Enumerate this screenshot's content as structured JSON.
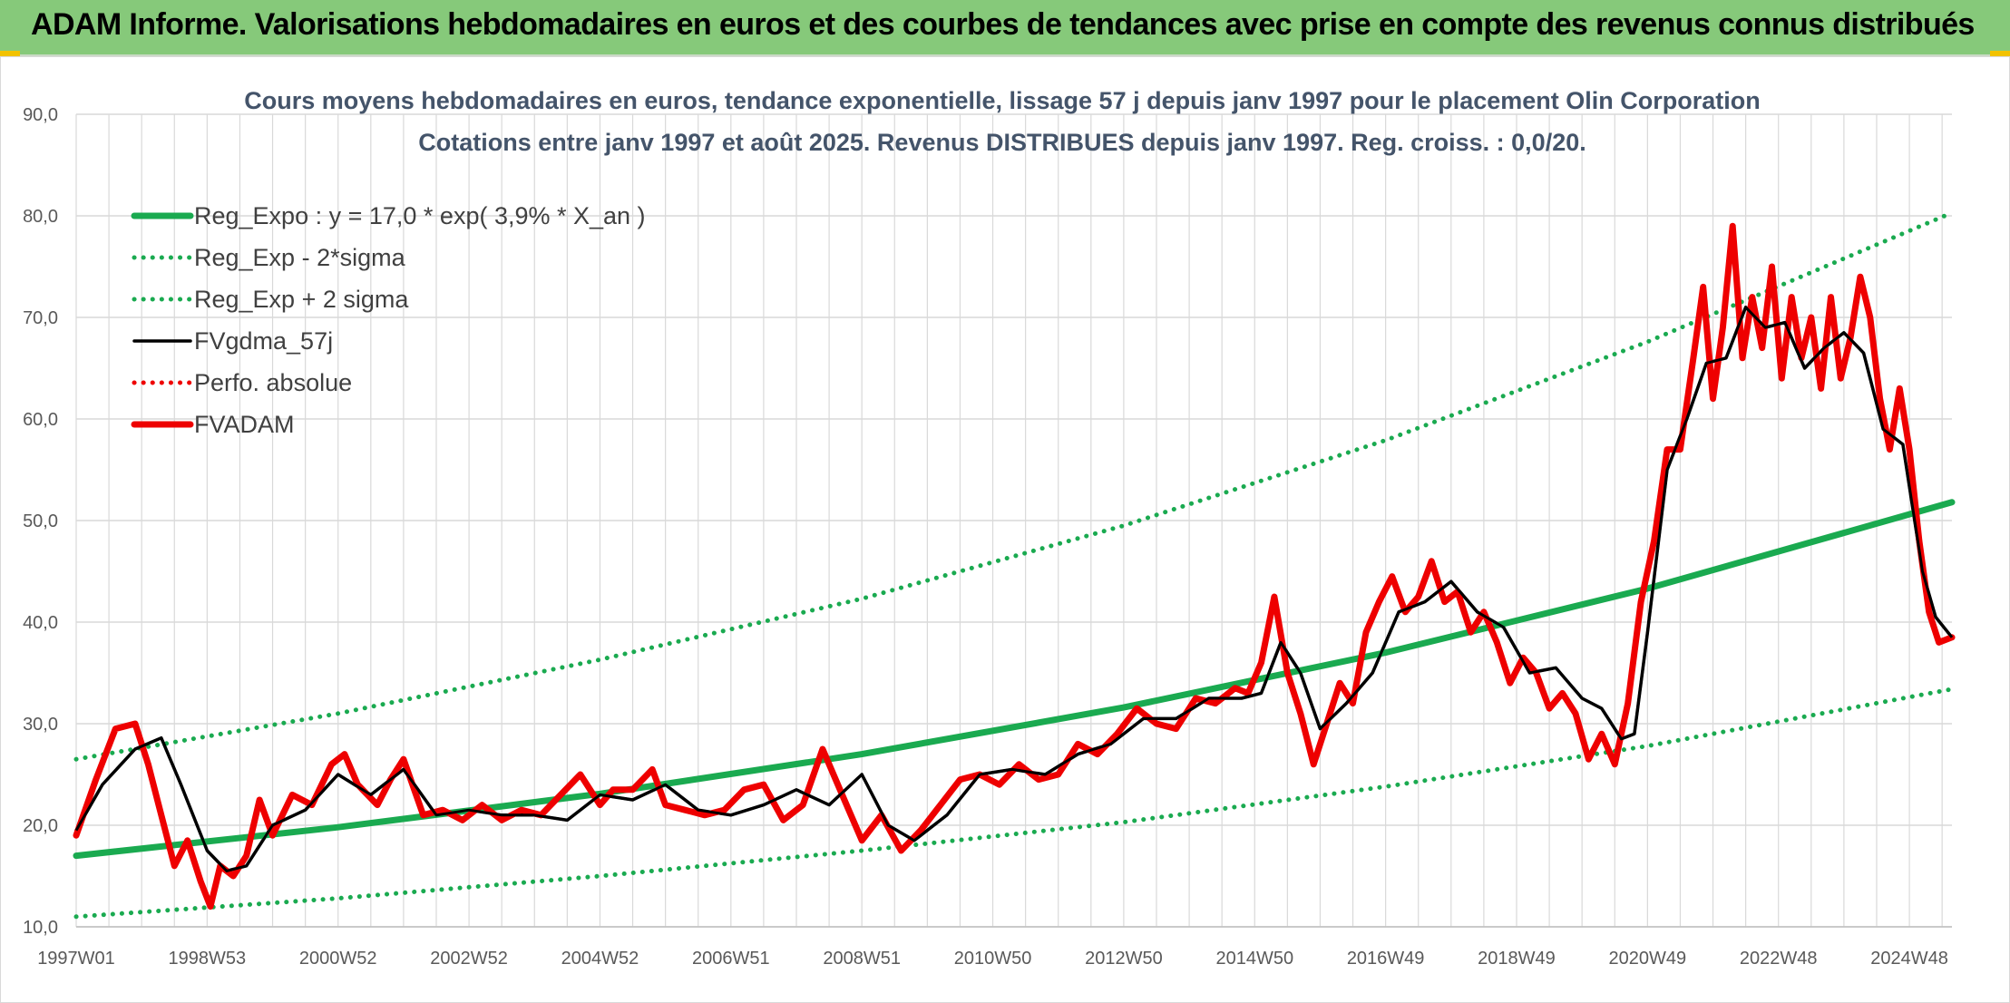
{
  "header": {
    "title": "ADAM Informe. Valorisations hebdomadaires en euros et des courbes de tendances avec prise en compte des revenus connus distribués"
  },
  "colors": {
    "banner": "#86c97a",
    "green": "#1aaa50",
    "black": "#000000",
    "red": "#ee0000",
    "grid": "#d9d9d9"
  },
  "chart_data": {
    "type": "line",
    "title": "Cours moyens hebdomadaires en euros, tendance exponentielle, lissage 57 j depuis janv 1997 pour le placement Olin Corporation",
    "subtitle": "Cotations entre janv 1997 et août 2025. Revenus DISTRIBUES depuis janv 1997. Reg. croiss. : 0,0/20.",
    "xlabel": "",
    "ylabel": "",
    "x_range": [
      1997.0,
      2025.65
    ],
    "ylim": [
      10,
      90
    ],
    "yticks": [
      "10,0",
      "20,0",
      "30,0",
      "40,0",
      "50,0",
      "60,0",
      "70,0",
      "80,0",
      "90,0"
    ],
    "xticks": [
      {
        "label": "1997W01",
        "x": 1997.0
      },
      {
        "label": "1998W53",
        "x": 1999.0
      },
      {
        "label": "2000W52",
        "x": 2001.0
      },
      {
        "label": "2002W52",
        "x": 2003.0
      },
      {
        "label": "2004W52",
        "x": 2005.0
      },
      {
        "label": "2006W51",
        "x": 2007.0
      },
      {
        "label": "2008W51",
        "x": 2009.0
      },
      {
        "label": "2010W50",
        "x": 2011.0
      },
      {
        "label": "2012W50",
        "x": 2013.0
      },
      {
        "label": "2014W50",
        "x": 2015.0
      },
      {
        "label": "2016W49",
        "x": 2017.0
      },
      {
        "label": "2018W49",
        "x": 2019.0
      },
      {
        "label": "2020W49",
        "x": 2021.0
      },
      {
        "label": "2022W48",
        "x": 2023.0
      },
      {
        "label": "2024W48",
        "x": 2025.0
      }
    ],
    "grid": true,
    "legend_position": "top-left",
    "series": [
      {
        "name": "Reg_Expo : y = 17,0 * exp( 3,9% *  X_an )",
        "style": "solid-thick",
        "color": "#1aaa50",
        "x": [
          1997.0,
          2001.0,
          2005.0,
          2009.0,
          2013.0,
          2017.0,
          2021.0,
          2025.65
        ],
        "y": [
          17.0,
          19.8,
          23.1,
          27.0,
          31.6,
          37.0,
          43.3,
          51.8
        ]
      },
      {
        "name": "Reg_Exp - 2*sigma",
        "style": "dotted",
        "color": "#1aaa50",
        "x": [
          1997.0,
          2001.0,
          2005.0,
          2009.0,
          2013.0,
          2017.0,
          2021.0,
          2025.65
        ],
        "y": [
          11.0,
          12.8,
          15.0,
          17.5,
          20.3,
          23.8,
          27.8,
          33.4
        ]
      },
      {
        "name": "Reg_Exp + 2 sigma",
        "style": "dotted",
        "color": "#1aaa50",
        "x": [
          1997.0,
          2001.0,
          2005.0,
          2009.0,
          2013.0,
          2017.0,
          2021.0,
          2025.65
        ],
        "y": [
          26.5,
          31.0,
          36.3,
          42.3,
          49.5,
          57.9,
          67.6,
          80.3
        ]
      },
      {
        "name": "FVgdma_57j",
        "style": "solid",
        "color": "#000000",
        "x": [
          1997.0,
          1997.4,
          1997.9,
          1998.3,
          1998.6,
          1999.0,
          1999.3,
          1999.6,
          2000.0,
          2000.5,
          2001.0,
          2001.5,
          2002.0,
          2002.5,
          2003.0,
          2003.5,
          2004.0,
          2004.5,
          2005.0,
          2005.5,
          2006.0,
          2006.5,
          2007.0,
          2007.5,
          2008.0,
          2008.5,
          2009.0,
          2009.4,
          2009.8,
          2010.3,
          2010.8,
          2011.3,
          2011.8,
          2012.3,
          2012.8,
          2013.3,
          2013.8,
          2014.3,
          2014.8,
          2015.1,
          2015.4,
          2015.7,
          2016.0,
          2016.4,
          2016.8,
          2017.2,
          2017.6,
          2018.0,
          2018.4,
          2018.8,
          2019.2,
          2019.6,
          2020.0,
          2020.3,
          2020.6,
          2020.8,
          2021.0,
          2021.3,
          2021.6,
          2021.9,
          2022.2,
          2022.5,
          2022.8,
          2023.1,
          2023.4,
          2023.7,
          2024.0,
          2024.3,
          2024.6,
          2024.9,
          2025.2,
          2025.4,
          2025.65
        ],
        "y": [
          19.5,
          24.0,
          27.5,
          28.6,
          24.0,
          17.5,
          15.5,
          16.0,
          20.0,
          21.5,
          25.0,
          23.0,
          25.5,
          21.0,
          21.5,
          21.0,
          21.0,
          20.5,
          23.0,
          22.5,
          24.0,
          21.5,
          21.0,
          22.0,
          23.5,
          22.0,
          25.0,
          20.0,
          18.5,
          21.0,
          25.0,
          25.5,
          25.0,
          27.0,
          28.0,
          30.5,
          30.5,
          32.5,
          32.5,
          33.0,
          38.0,
          35.0,
          29.5,
          32.0,
          35.0,
          41.0,
          42.0,
          44.0,
          41.0,
          39.5,
          35.0,
          35.5,
          32.5,
          31.5,
          28.5,
          29.0,
          39.0,
          55.0,
          60.0,
          65.5,
          66.0,
          71.0,
          69.0,
          69.5,
          65.0,
          67.0,
          68.5,
          66.5,
          59.0,
          57.5,
          45.0,
          40.5,
          38.5
        ]
      },
      {
        "name": "Perfo. absolue",
        "style": "dotted",
        "color": "#ee0000",
        "x": [],
        "y": []
      },
      {
        "name": "FVADAM",
        "style": "solid-thick",
        "color": "#ee0000",
        "x": [
          1997.0,
          1997.3,
          1997.6,
          1997.9,
          1998.1,
          1998.3,
          1998.5,
          1998.7,
          1998.9,
          1999.05,
          1999.2,
          1999.4,
          1999.6,
          1999.8,
          2000.0,
          2000.3,
          2000.6,
          2000.9,
          2001.1,
          2001.3,
          2001.6,
          2001.8,
          2002.0,
          2002.3,
          2002.6,
          2002.9,
          2003.2,
          2003.5,
          2003.8,
          2004.1,
          2004.4,
          2004.7,
          2005.0,
          2005.2,
          2005.5,
          2005.8,
          2006.0,
          2006.3,
          2006.6,
          2006.9,
          2007.2,
          2007.5,
          2007.8,
          2008.1,
          2008.4,
          2008.7,
          2009.0,
          2009.3,
          2009.6,
          2009.9,
          2010.2,
          2010.5,
          2010.8,
          2011.1,
          2011.4,
          2011.7,
          2012.0,
          2012.3,
          2012.6,
          2012.9,
          2013.2,
          2013.5,
          2013.8,
          2014.1,
          2014.4,
          2014.7,
          2014.9,
          2015.1,
          2015.3,
          2015.5,
          2015.7,
          2015.9,
          2016.1,
          2016.3,
          2016.5,
          2016.7,
          2016.9,
          2017.1,
          2017.3,
          2017.5,
          2017.7,
          2017.9,
          2018.1,
          2018.3,
          2018.5,
          2018.7,
          2018.9,
          2019.1,
          2019.3,
          2019.5,
          2019.7,
          2019.9,
          2020.1,
          2020.3,
          2020.5,
          2020.7,
          2020.9,
          2021.1,
          2021.3,
          2021.5,
          2021.7,
          2021.85,
          2022.0,
          2022.15,
          2022.3,
          2022.45,
          2022.6,
          2022.75,
          2022.9,
          2023.05,
          2023.2,
          2023.35,
          2023.5,
          2023.65,
          2023.8,
          2023.95,
          2024.1,
          2024.25,
          2024.4,
          2024.55,
          2024.7,
          2024.85,
          2025.0,
          2025.15,
          2025.3,
          2025.45,
          2025.65
        ],
        "y": [
          19.0,
          24.5,
          29.5,
          30.0,
          26.0,
          21.0,
          16.0,
          18.5,
          14.5,
          12.0,
          16.0,
          15.0,
          17.0,
          22.5,
          19.0,
          23.0,
          22.0,
          26.0,
          27.0,
          24.0,
          22.0,
          24.5,
          26.5,
          21.0,
          21.5,
          20.5,
          22.0,
          20.5,
          21.5,
          21.0,
          23.0,
          25.0,
          22.0,
          23.5,
          23.5,
          25.5,
          22.0,
          21.5,
          21.0,
          21.5,
          23.5,
          24.0,
          20.5,
          22.0,
          27.5,
          23.0,
          18.5,
          21.0,
          17.5,
          19.5,
          22.0,
          24.5,
          25.0,
          24.0,
          26.0,
          24.5,
          25.0,
          28.0,
          27.0,
          29.0,
          31.5,
          30.0,
          29.5,
          32.5,
          32.0,
          33.5,
          33.0,
          36.0,
          42.5,
          35.0,
          31.0,
          26.0,
          30.0,
          34.0,
          32.0,
          39.0,
          42.0,
          44.5,
          41.0,
          42.5,
          46.0,
          42.0,
          43.0,
          39.0,
          41.0,
          38.0,
          34.0,
          36.5,
          35.0,
          31.5,
          33.0,
          31.0,
          26.5,
          29.0,
          26.0,
          32.0,
          42.0,
          48.0,
          57.0,
          57.0,
          66.0,
          73.0,
          62.0,
          69.0,
          79.0,
          66.0,
          72.0,
          67.0,
          75.0,
          64.0,
          72.0,
          66.0,
          70.0,
          63.0,
          72.0,
          64.0,
          68.0,
          74.0,
          70.0,
          62.0,
          57.0,
          63.0,
          57.0,
          48.0,
          41.0,
          38.0,
          38.5
        ]
      }
    ]
  }
}
